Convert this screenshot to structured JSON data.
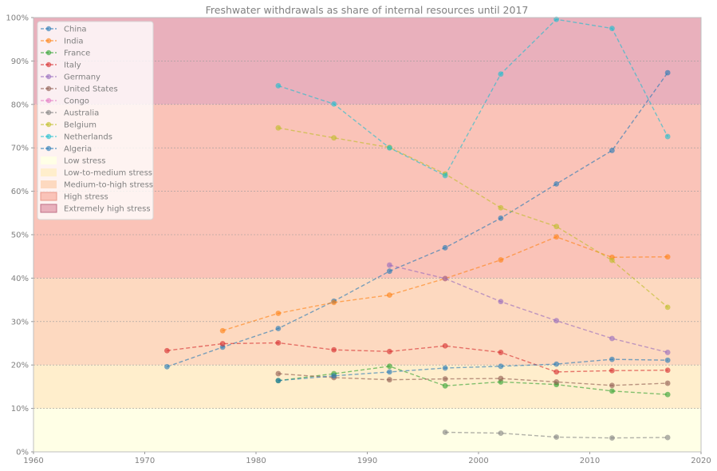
{
  "chart_data": {
    "type": "line",
    "title": "Freshwater withdrawals as share of internal resources until 2017",
    "xlabel": "",
    "ylabel": "",
    "xlim": [
      1960,
      2020
    ],
    "ylim": [
      0,
      100
    ],
    "x_ticks": [
      "1960",
      "1970",
      "1980",
      "1990",
      "2000",
      "2010",
      "2020"
    ],
    "y_ticks": [
      "0%",
      "10%",
      "20%",
      "30%",
      "40%",
      "50%",
      "60%",
      "70%",
      "80%",
      "90%",
      "100%"
    ],
    "grid": "horizontal dashed",
    "legend_position": "top-left",
    "bands": [
      {
        "name": "Low stress",
        "from": 0,
        "to": 10,
        "color": "#ffffe6"
      },
      {
        "name": "Low-to-medium stress",
        "from": 10,
        "to": 20,
        "color": "#ffeecc"
      },
      {
        "name": "Medium-to-high stress",
        "from": 20,
        "to": 40,
        "color": "#fdd9c0"
      },
      {
        "name": "High stress",
        "from": 40,
        "to": 80,
        "color": "#fac3b8"
      },
      {
        "name": "Extremely high stress",
        "from": 80,
        "to": 100,
        "color": "#e9b0bc"
      }
    ],
    "series": [
      {
        "name": "China",
        "color": "#1f77b4",
        "points": [
          [
            1972,
            19.6
          ],
          [
            1977,
            24.1
          ],
          [
            1982,
            28.4
          ],
          [
            1987,
            34.7
          ],
          [
            1992,
            41.6
          ],
          [
            1997,
            47.0
          ],
          [
            2002,
            53.8
          ],
          [
            2007,
            61.7
          ],
          [
            2012,
            69.4
          ],
          [
            2017,
            87.3
          ]
        ]
      },
      {
        "name": "India",
        "color": "#ff7f0e",
        "points": [
          [
            1977,
            27.9
          ],
          [
            1982,
            31.9
          ],
          [
            1987,
            34.4
          ],
          [
            1992,
            36.1
          ],
          [
            1997,
            39.9
          ],
          [
            2002,
            44.2
          ],
          [
            2007,
            49.5
          ],
          [
            2012,
            44.8
          ],
          [
            2017,
            44.9
          ]
        ]
      },
      {
        "name": "France",
        "color": "#2ca02c",
        "points": [
          [
            1982,
            16.4
          ],
          [
            1987,
            18.0
          ],
          [
            1992,
            19.7
          ],
          [
            1997,
            15.2
          ],
          [
            2002,
            16.1
          ],
          [
            2007,
            15.5
          ],
          [
            2012,
            14.0
          ],
          [
            2017,
            13.2
          ]
        ]
      },
      {
        "name": "Italy",
        "color": "#d62728",
        "points": [
          [
            1972,
            23.3
          ],
          [
            1977,
            24.9
          ],
          [
            1982,
            25.1
          ],
          [
            1987,
            23.5
          ],
          [
            1992,
            23.1
          ],
          [
            1997,
            24.4
          ],
          [
            2002,
            22.9
          ],
          [
            2007,
            18.4
          ],
          [
            2012,
            18.7
          ],
          [
            2017,
            18.8
          ]
        ]
      },
      {
        "name": "Germany",
        "color": "#9467bd",
        "points": [
          [
            1992,
            43.0
          ],
          [
            1997,
            39.9
          ],
          [
            2002,
            34.6
          ],
          [
            2007,
            30.2
          ],
          [
            2012,
            26.1
          ],
          [
            2017,
            22.9
          ]
        ]
      },
      {
        "name": "United States",
        "color": "#8c564b",
        "points": [
          [
            1982,
            18.0
          ],
          [
            1987,
            17.1
          ],
          [
            1992,
            16.6
          ],
          [
            1997,
            16.8
          ],
          [
            2002,
            16.9
          ],
          [
            2007,
            16.1
          ],
          [
            2012,
            15.3
          ],
          [
            2017,
            15.8
          ]
        ]
      },
      {
        "name": "Congo",
        "color": "#e377c2",
        "points": []
      },
      {
        "name": "Australia",
        "color": "#7f7f7f",
        "points": [
          [
            1997,
            4.5
          ],
          [
            2002,
            4.3
          ],
          [
            2007,
            3.4
          ],
          [
            2012,
            3.2
          ],
          [
            2017,
            3.3
          ]
        ]
      },
      {
        "name": "Belgium",
        "color": "#bcbd22",
        "points": [
          [
            1982,
            74.6
          ],
          [
            1987,
            72.3
          ],
          [
            1992,
            70.1
          ],
          [
            1997,
            64.0
          ],
          [
            2002,
            56.2
          ],
          [
            2007,
            51.9
          ],
          [
            2012,
            44.1
          ],
          [
            2017,
            33.3
          ]
        ]
      },
      {
        "name": "Netherlands",
        "color": "#17becf",
        "points": [
          [
            1982,
            84.3
          ],
          [
            1987,
            80.1
          ],
          [
            1992,
            70.0
          ],
          [
            1997,
            63.6
          ],
          [
            2002,
            87.0
          ],
          [
            2007,
            99.6
          ],
          [
            2012,
            97.5
          ],
          [
            2017,
            72.6
          ]
        ]
      },
      {
        "name": "Algeria",
        "color": "#1f77b4",
        "points": [
          [
            1982,
            16.4
          ],
          [
            1987,
            17.5
          ],
          [
            1992,
            18.4
          ],
          [
            1997,
            19.3
          ],
          [
            2002,
            19.7
          ],
          [
            2007,
            20.2
          ],
          [
            2012,
            21.3
          ],
          [
            2017,
            21.1
          ]
        ]
      }
    ]
  }
}
